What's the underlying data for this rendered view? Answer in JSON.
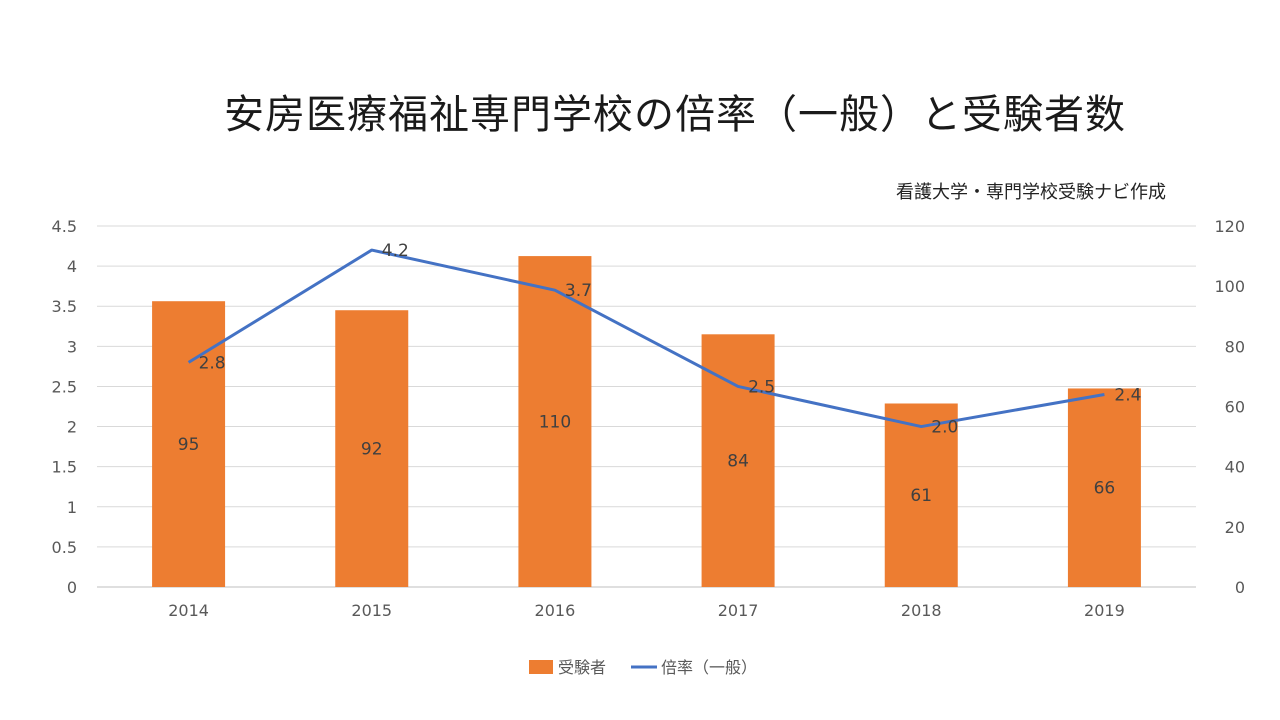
{
  "title": "安房医療福祉専門学校の倍率（一般）と受験者数",
  "credit": "看護大学・専門学校受験ナビ作成",
  "colors": {
    "bar": "#ED7D31",
    "line": "#4472C4",
    "grid": "#D9D9D9"
  },
  "chart_data": {
    "type": "bar+line",
    "categories": [
      "2014",
      "2015",
      "2016",
      "2017",
      "2018",
      "2019"
    ],
    "series": [
      {
        "name": "受験者",
        "type": "bar",
        "axis": "right",
        "values": [
          95,
          92,
          110,
          84,
          61,
          66
        ]
      },
      {
        "name": "倍率（一般）",
        "type": "line",
        "axis": "left",
        "values": [
          2.8,
          4.2,
          3.7,
          2.5,
          2.0,
          2.4
        ],
        "labels": [
          "2.8",
          "4.2",
          "3.7",
          "2.5",
          "2.0",
          "2.4"
        ]
      }
    ],
    "left_axis": {
      "min": 0,
      "max": 4.5,
      "step": 0.5,
      "ticks": [
        "0",
        "0.5",
        "1",
        "1.5",
        "2",
        "2.5",
        "3",
        "3.5",
        "4",
        "4.5"
      ]
    },
    "right_axis": {
      "min": 0,
      "max": 120,
      "step": 20,
      "ticks": [
        "0",
        "20",
        "40",
        "60",
        "80",
        "100",
        "120"
      ]
    },
    "legend": {
      "position": "bottom",
      "items": [
        "受験者",
        "倍率（一般）"
      ]
    }
  }
}
